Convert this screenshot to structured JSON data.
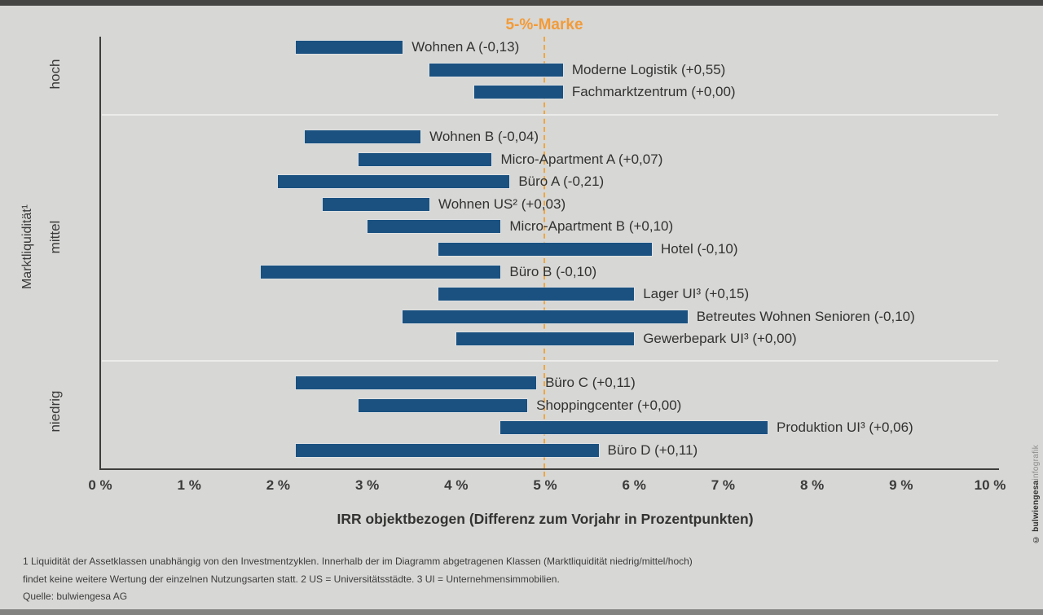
{
  "frame": {
    "background": "#d7d7d5",
    "bar_color": "#1a5180",
    "accent_orange": "#f29b38"
  },
  "chart_data": {
    "type": "bar",
    "subtype": "horizontal-range-bars",
    "xlabel": "IRR objektbezogen (Differenz zum Vorjahr in Prozentpunkten)",
    "ylabel": "Marktliquidität¹",
    "xlim": [
      0,
      10
    ],
    "x_tick_labels": [
      "0 %",
      "1 %",
      "2 %",
      "3 %",
      "4 %",
      "5 %",
      "6 %",
      "7 %",
      "8 %",
      "9 %",
      "10 %"
    ],
    "grid": false,
    "legend": false,
    "reference_line": {
      "value": 5,
      "label": "5-%-Marke",
      "color": "#f29b38",
      "style": "dashed"
    },
    "groups": [
      {
        "liquidity": "hoch",
        "items": [
          {
            "label": "Wohnen A (-0,13)",
            "min": 2.2,
            "max": 3.4
          },
          {
            "label": "Moderne Logistik (+0,55)",
            "min": 3.7,
            "max": 5.2
          },
          {
            "label": "Fachmarktzentrum (+0,00)",
            "min": 4.2,
            "max": 5.2
          }
        ]
      },
      {
        "liquidity": "mittel",
        "items": [
          {
            "label": "Wohnen B (-0,04)",
            "min": 2.3,
            "max": 3.6
          },
          {
            "label": "Micro-Apartment A (+0,07)",
            "min": 2.9,
            "max": 4.4
          },
          {
            "label": "Büro A (-0,21)",
            "min": 2.0,
            "max": 4.6
          },
          {
            "label": "Wohnen US² (+0,03)",
            "min": 2.5,
            "max": 3.7
          },
          {
            "label": "Micro-Apartment B (+0,10)",
            "min": 3.0,
            "max": 4.5
          },
          {
            "label": "Hotel (-0,10)",
            "min": 3.8,
            "max": 6.2
          },
          {
            "label": "Büro B (-0,10)",
            "min": 1.8,
            "max": 4.5
          },
          {
            "label": "Lager UI³ (+0,15)",
            "min": 3.8,
            "max": 6.0
          },
          {
            "label": "Betreutes Wohnen Senioren (-0,10)",
            "min": 3.4,
            "max": 6.6
          },
          {
            "label": "Gewerbepark UI³ (+0,00)",
            "min": 4.0,
            "max": 6.0
          }
        ]
      },
      {
        "liquidity": "niedrig",
        "items": [
          {
            "label": "Büro C (+0,11)",
            "min": 2.2,
            "max": 4.9
          },
          {
            "label": "Shoppingcenter (+0,00)",
            "min": 2.9,
            "max": 4.8
          },
          {
            "label": "Produktion UI³ (+0,06)",
            "min": 4.5,
            "max": 7.5
          },
          {
            "label": "Büro D (+0,11)",
            "min": 2.2,
            "max": 5.6
          }
        ]
      }
    ]
  },
  "footer": {
    "lines": [
      "1 Liquidität der Assetklassen unabhängig von den Investmentzyklen. Innerhalb der im Diagramm abgetragenen Klassen (Marktliquidität niedrig/mittel/hoch)",
      "findet keine weitere Wertung der einzelnen Nutzungsarten statt. 2 US = Universitätsstädte. 3 UI = Unternehmensimmobilien."
    ],
    "source": "Quelle: bulwiengesa AG"
  },
  "credit": {
    "copyright": "© bulwiengesa",
    "suffix": "infografik"
  }
}
